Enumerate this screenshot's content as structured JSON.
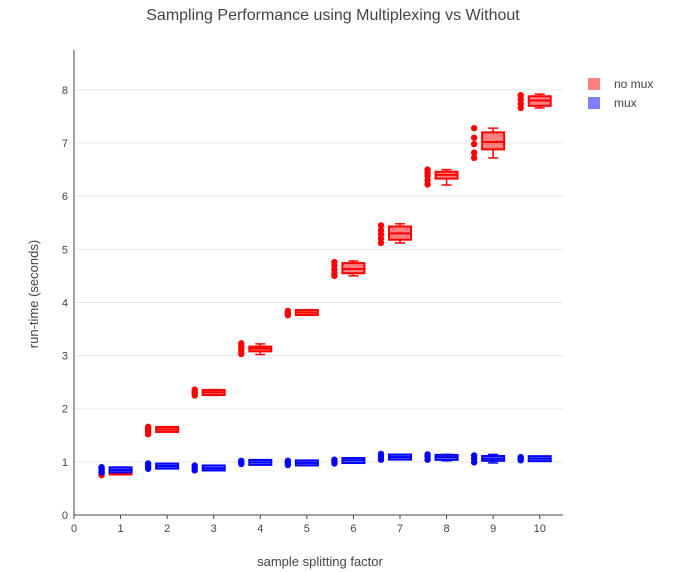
{
  "chart_data": {
    "type": "box",
    "title": "Sampling Performance using Multiplexing vs Without",
    "xlabel": "sample splitting factor",
    "ylabel": "run-time (seconds)",
    "x_ticks": [
      "0",
      "1",
      "2",
      "3",
      "4",
      "5",
      "6",
      "7",
      "8",
      "9",
      "10"
    ],
    "y_ticks": [
      "0",
      "1",
      "2",
      "3",
      "4",
      "5",
      "6",
      "7",
      "8"
    ],
    "xlim": [
      0,
      10.5
    ],
    "ylim": [
      0,
      8.6
    ],
    "grid": "horizontal",
    "legend_position": "top-right",
    "categories": [
      1,
      2,
      3,
      4,
      5,
      6,
      7,
      8,
      9,
      10
    ],
    "series": [
      {
        "name": "no mux",
        "color": "#ff0000",
        "fill": "#ff7f7f",
        "boxes": [
          {
            "x": 1,
            "min": 0.76,
            "q1": 0.78,
            "median": 0.8,
            "q3": 0.84,
            "max": 0.86,
            "points": [
              0.75,
              0.78,
              0.8,
              0.84,
              0.87
            ]
          },
          {
            "x": 2,
            "min": 1.59,
            "q1": 1.6,
            "median": 1.61,
            "q3": 1.62,
            "max": 1.63,
            "points": [
              1.52,
              1.56,
              1.6,
              1.63,
              1.66
            ]
          },
          {
            "x": 3,
            "min": 2.25,
            "q1": 2.28,
            "median": 2.31,
            "q3": 2.33,
            "max": 2.36,
            "points": [
              2.25,
              2.29,
              2.32,
              2.36
            ]
          },
          {
            "x": 4,
            "min": 3.02,
            "q1": 3.08,
            "median": 3.13,
            "q3": 3.17,
            "max": 3.22,
            "points": [
              3.03,
              3.08,
              3.13,
              3.18,
              3.23
            ]
          },
          {
            "x": 5,
            "min": 3.77,
            "q1": 3.79,
            "median": 3.81,
            "q3": 3.83,
            "max": 3.85,
            "points": [
              3.76,
              3.8,
              3.84
            ]
          },
          {
            "x": 6,
            "min": 4.5,
            "q1": 4.55,
            "median": 4.63,
            "q3": 4.74,
            "max": 4.78,
            "points": [
              4.5,
              4.55,
              4.62,
              4.7,
              4.76
            ]
          },
          {
            "x": 7,
            "min": 5.12,
            "q1": 5.18,
            "median": 5.3,
            "q3": 5.43,
            "max": 5.48,
            "points": [
              5.12,
              5.2,
              5.28,
              5.36,
              5.45
            ]
          },
          {
            "x": 8,
            "min": 6.21,
            "q1": 6.33,
            "median": 6.4,
            "q3": 6.46,
            "max": 6.5,
            "points": [
              6.22,
              6.3,
              6.38,
              6.44,
              6.5
            ]
          },
          {
            "x": 9,
            "min": 6.72,
            "q1": 6.88,
            "median": 7.02,
            "q3": 7.2,
            "max": 7.28,
            "points": [
              6.72,
              6.82,
              6.98,
              7.1,
              7.28
            ]
          },
          {
            "x": 10,
            "min": 7.66,
            "q1": 7.7,
            "median": 7.8,
            "q3": 7.88,
            "max": 7.92,
            "points": [
              7.66,
              7.74,
              7.82,
              7.9
            ]
          }
        ]
      },
      {
        "name": "mux",
        "color": "#0000ff",
        "fill": "#7f7fff",
        "boxes": [
          {
            "x": 1,
            "min": 0.8,
            "q1": 0.82,
            "median": 0.85,
            "q3": 0.88,
            "max": 0.9,
            "points": [
              0.8,
              0.85,
              0.9
            ]
          },
          {
            "x": 2,
            "min": 0.87,
            "q1": 0.89,
            "median": 0.92,
            "q3": 0.95,
            "max": 0.97,
            "points": [
              0.87,
              0.92,
              0.97
            ]
          },
          {
            "x": 3,
            "min": 0.84,
            "q1": 0.86,
            "median": 0.88,
            "q3": 0.91,
            "max": 0.93,
            "points": [
              0.84,
              0.88,
              0.93
            ]
          },
          {
            "x": 4,
            "min": 0.96,
            "q1": 0.97,
            "median": 0.99,
            "q3": 1.01,
            "max": 1.02,
            "points": [
              0.96,
              0.99,
              1.02
            ]
          },
          {
            "x": 5,
            "min": 0.94,
            "q1": 0.96,
            "median": 0.98,
            "q3": 1.0,
            "max": 1.02,
            "points": [
              0.94,
              0.98,
              1.02
            ]
          },
          {
            "x": 6,
            "min": 0.99,
            "q1": 1.01,
            "median": 1.03,
            "q3": 1.04,
            "max": 1.05,
            "points": [
              0.97,
              1.01,
              1.04
            ]
          },
          {
            "x": 7,
            "min": 1.06,
            "q1": 1.08,
            "median": 1.09,
            "q3": 1.1,
            "max": 1.12,
            "points": [
              1.04,
              1.1,
              1.15
            ]
          },
          {
            "x": 8,
            "min": 1.02,
            "q1": 1.05,
            "median": 1.09,
            "q3": 1.12,
            "max": 1.14,
            "points": [
              1.04,
              1.1,
              1.14
            ]
          },
          {
            "x": 9,
            "min": 0.98,
            "q1": 1.02,
            "median": 1.06,
            "q3": 1.11,
            "max": 1.14,
            "points": [
              0.99,
              1.06,
              1.12
            ]
          },
          {
            "x": 10,
            "min": 1.02,
            "q1": 1.04,
            "median": 1.06,
            "q3": 1.08,
            "max": 1.09,
            "points": [
              1.03,
              1.06,
              1.09
            ]
          }
        ]
      }
    ]
  }
}
